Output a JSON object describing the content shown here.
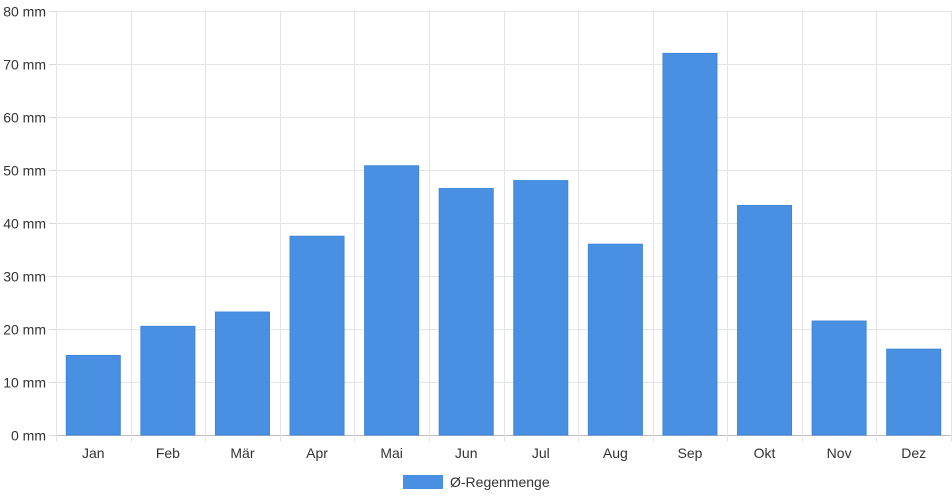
{
  "chart_data": {
    "type": "bar",
    "categories": [
      "Jan",
      "Feb",
      "Mär",
      "Apr",
      "Mai",
      "Jun",
      "Jul",
      "Aug",
      "Sep",
      "Okt",
      "Nov",
      "Dez"
    ],
    "series": [
      {
        "name": "Ø-Regenmenge",
        "color": "#4a90e2",
        "values": [
          15,
          20.5,
          23.2,
          37.5,
          50.8,
          46.5,
          48,
          36,
          72,
          43.3,
          21.5,
          16.2
        ]
      }
    ],
    "ylim": [
      0,
      80
    ],
    "yticks": [
      0,
      10,
      20,
      30,
      40,
      50,
      60,
      70,
      80
    ],
    "yunit": "mm",
    "ytick_labels": [
      "0 mm",
      "10 mm",
      "20 mm",
      "30 mm",
      "40 mm",
      "50 mm",
      "60 mm",
      "70 mm",
      "80 mm"
    ],
    "grid": true,
    "legend_position": "bottom-center",
    "title": "",
    "xlabel": "",
    "ylabel": ""
  }
}
